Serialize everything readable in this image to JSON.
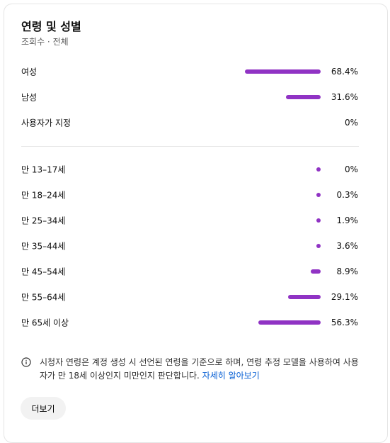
{
  "header": {
    "title": "연령 및 성별",
    "subtitle": "조회수 · 전체"
  },
  "genders": [
    {
      "label": "여성",
      "value": 68.4,
      "value_label": "68.4%"
    },
    {
      "label": "남성",
      "value": 31.6,
      "value_label": "31.6%"
    },
    {
      "label": "사용자가 지정",
      "value": 0,
      "value_label": "0%"
    }
  ],
  "ages": [
    {
      "label": "만 13–17세",
      "value": 0,
      "value_label": "0%"
    },
    {
      "label": "만 18–24세",
      "value": 0.3,
      "value_label": "0.3%"
    },
    {
      "label": "만 25–34세",
      "value": 1.9,
      "value_label": "1.9%"
    },
    {
      "label": "만 35–44세",
      "value": 3.6,
      "value_label": "3.6%"
    },
    {
      "label": "만 45–54세",
      "value": 8.9,
      "value_label": "8.9%"
    },
    {
      "label": "만 55–64세",
      "value": 29.1,
      "value_label": "29.1%"
    },
    {
      "label": "만 65세 이상",
      "value": 56.3,
      "value_label": "56.3%"
    }
  ],
  "note": {
    "text": "시청자 연령은 계정 생성 시 선언된 연령을 기준으로 하며, 연령 추정 모델을 사용하여 사용자가 만 18세 이상인지 미만인지 판단합니다.",
    "link": "자세히 알아보기"
  },
  "button": "더보기"
}
